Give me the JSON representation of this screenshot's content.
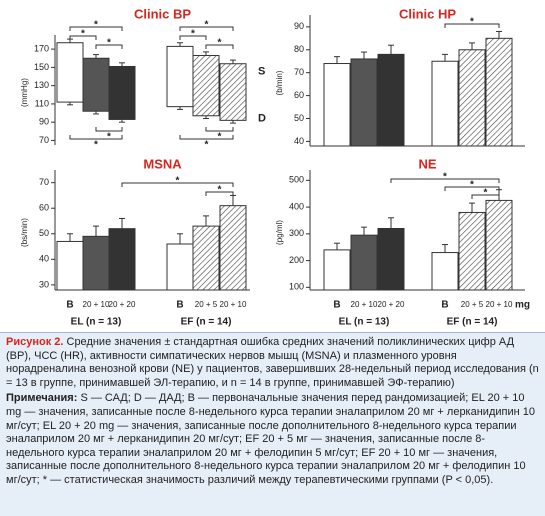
{
  "chart_data": [
    {
      "type": "floating",
      "title": "Clinic BP",
      "ylabel": "(mmHg)",
      "ylim": [
        65,
        180
      ],
      "yticks": [
        70,
        90,
        110,
        130,
        150,
        170
      ],
      "high": [
        177,
        160,
        151,
        173,
        163,
        154
      ],
      "high_errors": [
        4,
        4,
        4,
        4,
        4,
        4
      ],
      "low": [
        112,
        102,
        93,
        107,
        97,
        92
      ],
      "low_errors": [
        3,
        3,
        3,
        3,
        3,
        3
      ],
      "fills": [
        "#ffffff",
        "#555555",
        "#333333",
        "#ffffff",
        "hatch",
        "hatch"
      ],
      "systolic_label": "S",
      "diastolic_label": "D",
      "significance_label": "*"
    },
    {
      "type": "bar",
      "title": "Clinic HP",
      "ylabel": "(b/min)",
      "ylim": [
        38,
        93
      ],
      "yticks": [
        40,
        50,
        60,
        70,
        80,
        90
      ],
      "values": [
        74,
        76,
        78,
        75,
        80,
        85
      ],
      "errors": [
        3,
        3,
        4,
        3,
        3,
        3
      ],
      "fills": [
        "#ffffff",
        "#555555",
        "#333333",
        "#ffffff",
        "hatch",
        "hatch"
      ],
      "significance_label": "*"
    },
    {
      "type": "bar",
      "title": "MSNA",
      "ylabel": "(bs/min)",
      "ylim": [
        28,
        73
      ],
      "yticks": [
        30,
        40,
        50,
        60,
        70
      ],
      "values": [
        47,
        49,
        52,
        46,
        53,
        61
      ],
      "errors": [
        3,
        4,
        4,
        4,
        4,
        4
      ],
      "fills": [
        "#ffffff",
        "#555555",
        "#333333",
        "#ffffff",
        "hatch",
        "hatch"
      ],
      "significance_label": "*",
      "categories": [
        "B",
        "20 + 10",
        "20 + 20",
        "B",
        "20 + 5",
        "20 + 10"
      ],
      "groups": [
        "EL (n = 13)",
        "EF (n = 14)"
      ]
    },
    {
      "type": "bar",
      "title": "NE",
      "ylabel": "(pg/ml)",
      "ylim": [
        90,
        520
      ],
      "yticks": [
        100,
        200,
        300,
        400,
        500
      ],
      "values": [
        240,
        295,
        320,
        230,
        380,
        425
      ],
      "errors": [
        25,
        30,
        40,
        30,
        35,
        40
      ],
      "fills": [
        "#ffffff",
        "#555555",
        "#333333",
        "#ffffff",
        "hatch",
        "hatch"
      ],
      "significance_label": "*",
      "categories": [
        "B",
        "20 + 10",
        "20 + 20",
        "B",
        "20 + 5",
        "20 + 10"
      ],
      "groups": [
        "EL (n = 13)",
        "EF (n = 14)"
      ],
      "unit_label": "mg"
    }
  ],
  "figure_label": "Рисунок 2.",
  "caption": "Средние значения ± стандартная ошибка средних значений поликлинических цифр АД (BP), ЧСС (HR), активности симпатических нервов мышц (MSNA) и плазменного уровня норадреналина венозной крови (NE) у пациентов, завершивших 28-недельный период исследования (n = 13 в группе, принимавшей ЭЛ-терапию, и n = 14 в группе, принимавшей ЭФ-терапию)",
  "notes_label": "Примечания:",
  "notes": "S — САД; D — ДАД; B — первоначальные значения перед рандомизацией; EL 20 + 10 mg — значения, записанные после 8-недельного курса терапии эналаприлом 20 мг + лерканидипин 10 мг/сут; EL 20 + 20 mg — значения, записанные после дополнительного 8-недельного курса терапии эналаприлом 20 мг + лерканидипин 20 мг/сут; EF 20 + 5 мг — значения, записанные после 8-недельного курса терапии эналаприлом 20 мг + фелодипин 5 мг/сут; EF 20 + 10 мг — значения, записанные после дополнительного 8-недельного курса терапии эналаприлом 20 мг + фелодипин 10 мг/сут; * — статистическая значимость различий между терапевтическими группами (P < 0,05)."
}
